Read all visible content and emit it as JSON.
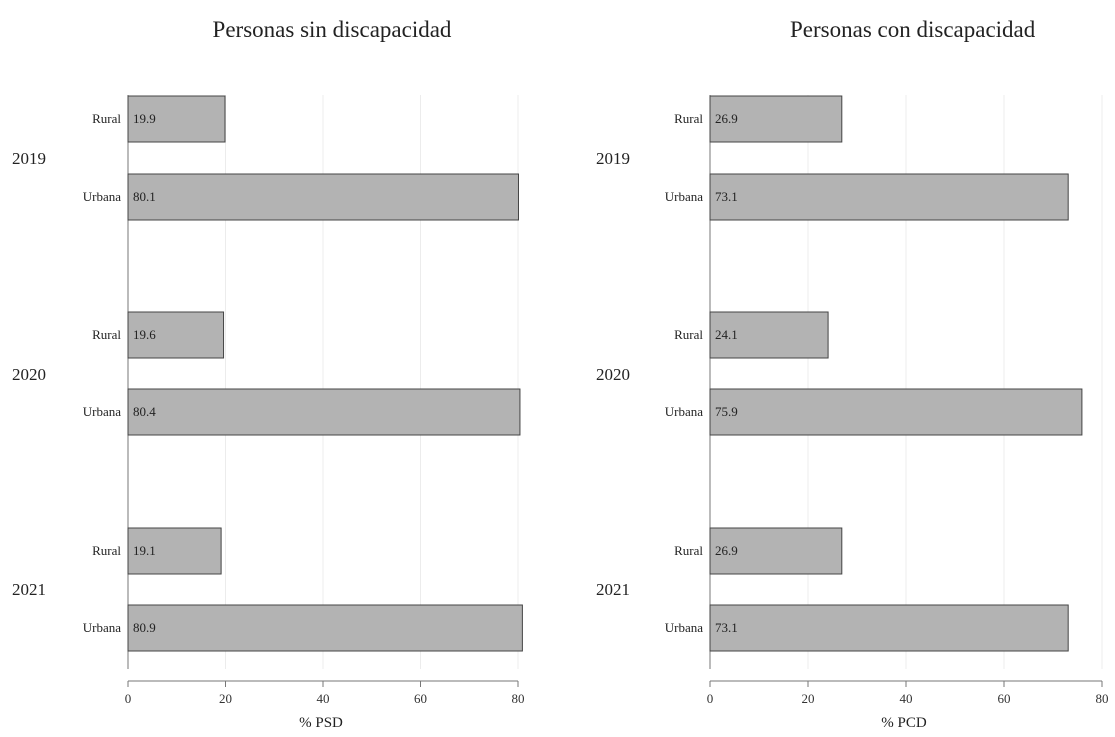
{
  "chart_data": [
    {
      "type": "bar",
      "orientation": "horizontal",
      "title": "Personas sin discapacidad",
      "xlabel": "% PSD",
      "ylabel": "",
      "xlim": [
        0,
        80
      ],
      "xticks": [
        0,
        20,
        40,
        60,
        80
      ],
      "groups": [
        {
          "year": "2019",
          "bars": [
            {
              "category": "Rural",
              "value": 19.9
            },
            {
              "category": "Urbana",
              "value": 80.1
            }
          ]
        },
        {
          "year": "2020",
          "bars": [
            {
              "category": "Rural",
              "value": 19.6
            },
            {
              "category": "Urbana",
              "value": 80.4
            }
          ]
        },
        {
          "year": "2021",
          "bars": [
            {
              "category": "Rural",
              "value": 19.1
            },
            {
              "category": "Urbana",
              "value": 80.9
            }
          ]
        }
      ]
    },
    {
      "type": "bar",
      "orientation": "horizontal",
      "title": "Personas con discapacidad",
      "xlabel": "% PCD",
      "ylabel": "",
      "xlim": [
        0,
        80
      ],
      "xticks": [
        0,
        20,
        40,
        60,
        80
      ],
      "groups": [
        {
          "year": "2019",
          "bars": [
            {
              "category": "Rural",
              "value": 26.9
            },
            {
              "category": "Urbana",
              "value": 73.1
            }
          ]
        },
        {
          "year": "2020",
          "bars": [
            {
              "category": "Rural",
              "value": 24.1
            },
            {
              "category": "Urbana",
              "value": 75.9
            }
          ]
        },
        {
          "year": "2021",
          "bars": [
            {
              "category": "Rural",
              "value": 26.9
            },
            {
              "category": "Urbana",
              "value": 73.1
            }
          ]
        }
      ]
    }
  ],
  "colors": {
    "bar_fill": "#b3b3b3",
    "bar_stroke": "#444444",
    "text": "#222222"
  }
}
